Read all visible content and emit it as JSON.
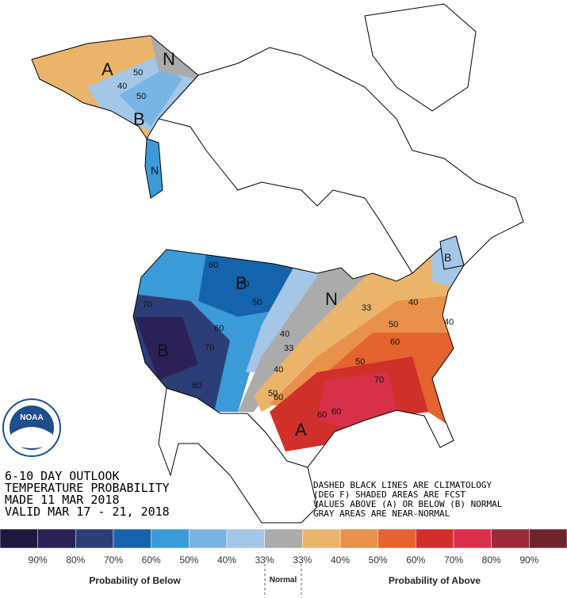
{
  "header": {
    "lines": [
      "6-10 DAY OUTLOOK",
      "TEMPERATURE PROBABILITY",
      "MADE 11 MAR 2018",
      "VALID MAR 17 - 21, 2018"
    ]
  },
  "notes": [
    "DASHED BLACK LINES ARE CLIMATOLOGY",
    "(DEG F) SHADED AREAS ARE FCST",
    "VALUES ABOVE (A) OR BELOW (B) NORMAL",
    "GRAY AREAS ARE NEAR-NORMAL"
  ],
  "logo": "NOAA",
  "map_labels": [
    "A",
    "N",
    "B",
    "B",
    "B",
    "N",
    "A",
    "N",
    "B"
  ],
  "contour_labels": [
    "50",
    "40",
    "50",
    "70",
    "60",
    "50",
    "70",
    "70",
    "60",
    "80",
    "33",
    "40",
    "50",
    "60",
    "40",
    "40",
    "40",
    "50",
    "60",
    "70",
    "60",
    "60",
    "50",
    "33"
  ],
  "legend": {
    "labels": [
      "90%",
      "80%",
      "70%",
      "60%",
      "50%",
      "40%",
      "33%",
      "33%",
      "40%",
      "50%",
      "60%",
      "70%",
      "80%",
      "90%"
    ],
    "colors": [
      "#1e1840",
      "#2b2158",
      "#2c3e78",
      "#1663ad",
      "#3b9bd9",
      "#78b5e5",
      "#a4c6e7",
      "#ababab",
      "#ebb46b",
      "#e8914b",
      "#e5632f",
      "#d0302a",
      "#d93049",
      "#9c2b3a",
      "#6e2429"
    ],
    "below": "Probability of Below",
    "normal": "Normal",
    "above": "Probability of Above"
  }
}
